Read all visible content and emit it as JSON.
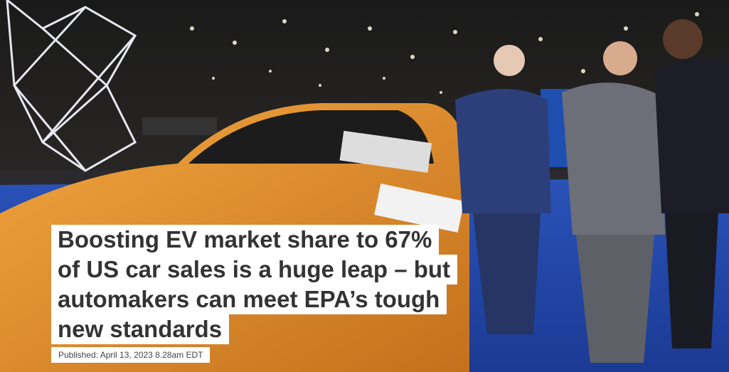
{
  "headline_lines": [
    "Boosting EV market share to 67%",
    "of US car sales is a huge leap – but",
    "automakers can meet EPA’s tough",
    "new standards"
  ],
  "published": "Published: April 13, 2023 8.28am EDT"
}
